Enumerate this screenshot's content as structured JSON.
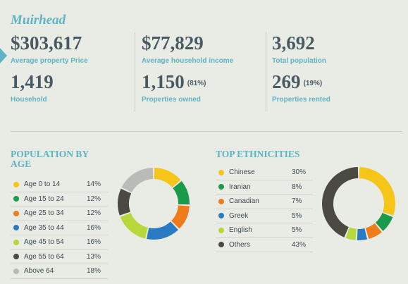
{
  "suburb": "Muirhead",
  "stats": [
    {
      "id": "avg-property-price",
      "value": "$303,617",
      "pct": "",
      "label": "Average property Price"
    },
    {
      "id": "avg-household-income",
      "value": "$77,829",
      "pct": "",
      "label": "Average household income"
    },
    {
      "id": "total-population",
      "value": "3,692",
      "pct": "",
      "label": "Total population"
    },
    {
      "id": "household",
      "value": "1,419",
      "pct": "",
      "label": "Household"
    },
    {
      "id": "properties-owned",
      "value": "1,150",
      "pct": "(81%)",
      "label": "Properties owned"
    },
    {
      "id": "properties-rented",
      "value": "269",
      "pct": "(19%)",
      "label": "Properties rented"
    }
  ],
  "population_by_age": {
    "heading_line1": "POPULATION BY",
    "heading_line2": "AGE",
    "items": [
      {
        "label": "Age 0 to 14",
        "pct": "14%",
        "value": 14,
        "color": "#f5c518"
      },
      {
        "label": "Age 15 to 24",
        "pct": "12%",
        "value": 12,
        "color": "#1a9b4b"
      },
      {
        "label": "Age 25 to 34",
        "pct": "12%",
        "value": 12,
        "color": "#f07b1a"
      },
      {
        "label": "Age 35 to 44",
        "pct": "16%",
        "value": 16,
        "color": "#2b7bc4"
      },
      {
        "label": "Age 45 to 54",
        "pct": "16%",
        "value": 16,
        "color": "#b6d83a"
      },
      {
        "label": "Age 55 to 64",
        "pct": "13%",
        "value": 13,
        "color": "#4a4a42"
      },
      {
        "label": "Above 64",
        "pct": "18%",
        "value": 18,
        "color": "#b9bcb6"
      }
    ]
  },
  "top_ethnicities": {
    "heading": "TOP ETHNICITIES",
    "items": [
      {
        "label": "Chinese",
        "pct": "30%",
        "value": 30,
        "color": "#f5c518"
      },
      {
        "label": "Iranian",
        "pct": "8%",
        "value": 8,
        "color": "#1a9b4b"
      },
      {
        "label": "Canadian",
        "pct": "7%",
        "value": 7,
        "color": "#f07b1a"
      },
      {
        "label": "Greek",
        "pct": "5%",
        "value": 5,
        "color": "#2b7bc4"
      },
      {
        "label": "English",
        "pct": "5%",
        "value": 5,
        "color": "#b6d83a"
      },
      {
        "label": "Others",
        "pct": "43%",
        "value": 43,
        "color": "#4a4a42"
      }
    ]
  },
  "chart_data": [
    {
      "type": "pie",
      "categories": [
        "Age 0 to 14",
        "Age 15 to 24",
        "Age 25 to 34",
        "Age 35 to 44",
        "Age 45 to 54",
        "Age 55 to 64",
        "Above 64"
      ],
      "values": [
        14,
        12,
        12,
        16,
        16,
        13,
        18
      ],
      "title": "POPULATION BY AGE"
    },
    {
      "type": "pie",
      "categories": [
        "Chinese",
        "Iranian",
        "Canadian",
        "Greek",
        "English",
        "Others"
      ],
      "values": [
        30,
        8,
        7,
        5,
        5,
        43
      ],
      "title": "TOP ETHNICITIES"
    }
  ]
}
